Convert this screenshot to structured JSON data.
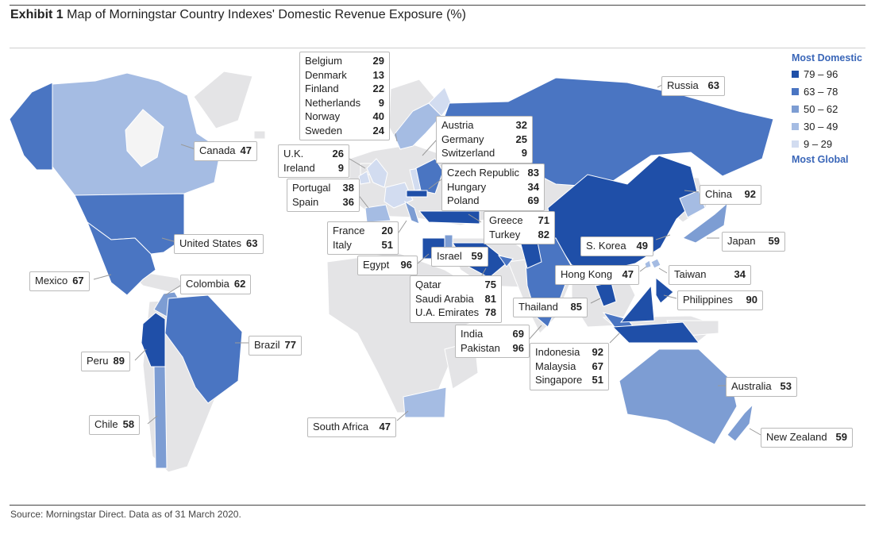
{
  "header": {
    "exhibit": "Exhibit 1",
    "title": "Map of Morningstar Country Indexes' Domestic Revenue Exposure (%)"
  },
  "footer": {
    "source": "Source: Morningstar Direct. Data as of 31 March 2020."
  },
  "legend": {
    "top_label": "Most Domestic",
    "bottom_label": "Most Global",
    "items": [
      {
        "label": "79 – 96",
        "color": "#1f4fa8"
      },
      {
        "label": "63 – 78",
        "color": "#4a75c2"
      },
      {
        "label": "50 – 62",
        "color": "#7d9dd3"
      },
      {
        "label": "30 – 49",
        "color": "#a5bce3"
      },
      {
        "label": "9 – 29",
        "color": "#d2dcf0"
      }
    ]
  },
  "colors": {
    "land": "#e4e4e6",
    "land_stroke": "#ffffff"
  },
  "labels": [
    {
      "id": "canada",
      "rows": [
        {
          "name": "Canada",
          "value": "47"
        }
      ]
    },
    {
      "id": "us",
      "rows": [
        {
          "name": "United States",
          "value": "63"
        }
      ]
    },
    {
      "id": "mexico",
      "rows": [
        {
          "name": "Mexico",
          "value": "67"
        }
      ]
    },
    {
      "id": "colombia",
      "rows": [
        {
          "name": "Colombia",
          "value": "62"
        }
      ]
    },
    {
      "id": "brazil",
      "rows": [
        {
          "name": "Brazil",
          "value": "77"
        }
      ]
    },
    {
      "id": "peru",
      "rows": [
        {
          "name": "Peru",
          "value": "89"
        }
      ]
    },
    {
      "id": "chile",
      "rows": [
        {
          "name": "Chile",
          "value": "58"
        }
      ]
    },
    {
      "id": "nordic",
      "rows": [
        {
          "name": "Belgium",
          "value": "29"
        },
        {
          "name": "Denmark",
          "value": "13"
        },
        {
          "name": "Finland",
          "value": "22"
        },
        {
          "name": "Netherlands",
          "value": "9"
        },
        {
          "name": "Norway",
          "value": "40"
        },
        {
          "name": "Sweden",
          "value": "24"
        }
      ]
    },
    {
      "id": "uk",
      "rows": [
        {
          "name": "U.K.",
          "value": "26"
        },
        {
          "name": "Ireland",
          "value": "9"
        }
      ]
    },
    {
      "id": "iberia",
      "rows": [
        {
          "name": "Portugal",
          "value": "38"
        },
        {
          "name": "Spain",
          "value": "36"
        }
      ]
    },
    {
      "id": "france",
      "rows": [
        {
          "name": "France",
          "value": "20"
        },
        {
          "name": "Italy",
          "value": "51"
        }
      ]
    },
    {
      "id": "egypt",
      "rows": [
        {
          "name": "Egypt",
          "value": "96"
        }
      ]
    },
    {
      "id": "austria",
      "rows": [
        {
          "name": "Austria",
          "value": "32"
        },
        {
          "name": "Germany",
          "value": "25"
        },
        {
          "name": "Switzerland",
          "value": "9"
        }
      ]
    },
    {
      "id": "czech",
      "rows": [
        {
          "name": "Czech Republic",
          "value": "83"
        },
        {
          "name": "Hungary",
          "value": "34"
        },
        {
          "name": "Poland",
          "value": "69"
        }
      ]
    },
    {
      "id": "greece",
      "rows": [
        {
          "name": "Greece",
          "value": "71"
        },
        {
          "name": "Turkey",
          "value": "82"
        }
      ]
    },
    {
      "id": "israel",
      "rows": [
        {
          "name": "Israel",
          "value": "59"
        }
      ]
    },
    {
      "id": "gulf",
      "rows": [
        {
          "name": "Qatar",
          "value": "75"
        },
        {
          "name": "Saudi Arabia",
          "value": "81"
        },
        {
          "name": "U.A. Emirates",
          "value": "78"
        }
      ]
    },
    {
      "id": "india",
      "rows": [
        {
          "name": "India",
          "value": "69"
        },
        {
          "name": "Pakistan",
          "value": "96"
        }
      ]
    },
    {
      "id": "southafrica",
      "rows": [
        {
          "name": "South Africa",
          "value": "47"
        }
      ]
    },
    {
      "id": "russia",
      "rows": [
        {
          "name": "Russia",
          "value": "63"
        }
      ]
    },
    {
      "id": "china",
      "rows": [
        {
          "name": "China",
          "value": "92"
        }
      ]
    },
    {
      "id": "japan",
      "rows": [
        {
          "name": "Japan",
          "value": "59"
        }
      ]
    },
    {
      "id": "skorea",
      "rows": [
        {
          "name": "S. Korea",
          "value": "49"
        }
      ]
    },
    {
      "id": "hongkong",
      "rows": [
        {
          "name": "Hong Kong",
          "value": "47"
        }
      ]
    },
    {
      "id": "taiwan",
      "rows": [
        {
          "name": "Taiwan",
          "value": "34"
        }
      ]
    },
    {
      "id": "philippines",
      "rows": [
        {
          "name": "Philippines",
          "value": "90"
        }
      ]
    },
    {
      "id": "thailand",
      "rows": [
        {
          "name": "Thailand",
          "value": "85"
        }
      ]
    },
    {
      "id": "sea",
      "rows": [
        {
          "name": "Indonesia",
          "value": "92"
        },
        {
          "name": "Malaysia",
          "value": "67"
        },
        {
          "name": "Singapore",
          "value": "51"
        }
      ]
    },
    {
      "id": "australia",
      "rows": [
        {
          "name": "Australia",
          "value": "53"
        }
      ]
    },
    {
      "id": "newzealand",
      "rows": [
        {
          "name": "New Zealand",
          "value": "59"
        }
      ]
    }
  ]
}
